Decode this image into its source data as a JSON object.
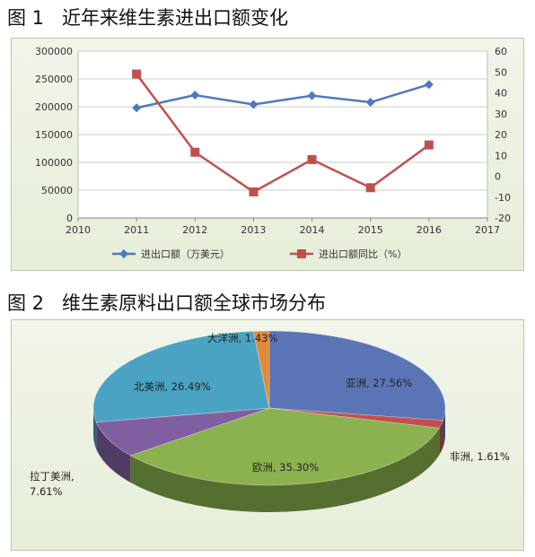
{
  "figure1_title": "图 1   近年来维生素进出口额变化",
  "figure2_title": "图 2   维生素原料出口额全球市场分布",
  "colors": {
    "series1": "#4f79bd",
    "series2": "#c0504d",
    "grid": "#c9cfc0"
  },
  "chart_data": [
    {
      "type": "line",
      "x": [
        2011,
        2012,
        2013,
        2014,
        2015,
        2016
      ],
      "xlim": [
        2010,
        2017
      ],
      "x_ticks": [
        "2010",
        "2011",
        "2012",
        "2013",
        "2014",
        "2015",
        "2016",
        "2017"
      ],
      "ylim": [
        0,
        300000
      ],
      "y_ticks": [
        "0",
        "50000",
        "100000",
        "150000",
        "200000",
        "250000",
        "300000"
      ],
      "y2lim": [
        -20,
        60
      ],
      "y2_ticks": [
        "-20",
        "-10",
        "0",
        "10",
        "20",
        "30",
        "40",
        "50",
        "60"
      ],
      "grid": "horizontal",
      "legend": "bottom",
      "series": [
        {
          "name": "进出口额（万美元）",
          "axis": "left",
          "marker": "diamond",
          "values": [
            198000,
            221000,
            204000,
            220000,
            208000,
            240000
          ]
        },
        {
          "name": "进出口额同比（%）",
          "axis": "right",
          "marker": "square",
          "values": [
            49,
            11.5,
            -7.5,
            8,
            -5.5,
            15
          ]
        }
      ]
    },
    {
      "type": "pie",
      "style": "3d",
      "labels": [
        "亚洲",
        "非洲",
        "欧洲",
        "拉丁美洲",
        "北美洲",
        "大洋洲"
      ],
      "values": [
        27.56,
        1.61,
        35.3,
        7.61,
        26.49,
        1.43
      ],
      "data_labels": [
        "亚洲, 27.56%",
        "非洲, 1.61%",
        "欧洲, 35.30%",
        "拉丁美洲,",
        "北美洲, 26.49%",
        "大洋洲, 1.43%"
      ],
      "data_labels_line2": [
        "",
        "",
        "",
        "7.61%",
        "",
        ""
      ],
      "colors": [
        "#5b74b6",
        "#c0504d",
        "#8cb24f",
        "#7f5f9f",
        "#4aa3c2",
        "#e08b3a"
      ]
    }
  ]
}
